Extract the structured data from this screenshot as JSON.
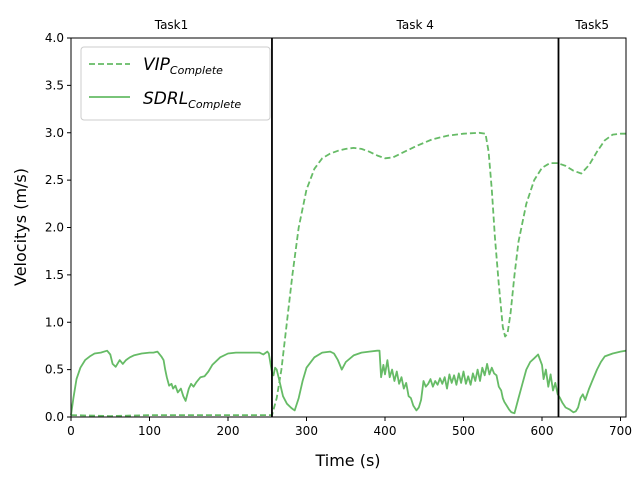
{
  "chart_data": {
    "type": "line",
    "xlabel": "Time (s)",
    "ylabel": "Velocitys (m/s)",
    "xlim": [
      0,
      707
    ],
    "ylim": [
      0,
      4.0
    ],
    "xticks": [
      "0",
      "100",
      "200",
      "300",
      "400",
      "500",
      "600",
      "700"
    ],
    "yticks": [
      "0.0",
      "0.5",
      "1.0",
      "1.5",
      "2.0",
      "2.5",
      "3.0",
      "3.5",
      "4.0"
    ],
    "grid": false,
    "legend_position": "top-left",
    "task_dividers": [
      {
        "x": 256,
        "label": "Task1"
      },
      {
        "x": 621,
        "label": "Task 4"
      },
      {
        "x": 707,
        "label": "Task5"
      }
    ],
    "series": [
      {
        "name_main": "VIP",
        "name_sub": "Complete",
        "color": "#66bb66",
        "dash": true,
        "x": [
          0,
          50,
          100,
          150,
          200,
          256,
          262,
          268,
          275,
          282,
          290,
          300,
          310,
          320,
          330,
          340,
          350,
          360,
          370,
          380,
          390,
          400,
          410,
          420,
          440,
          460,
          480,
          500,
          520,
          528,
          532,
          536,
          540,
          545,
          550,
          553,
          556,
          560,
          565,
          570,
          580,
          590,
          600,
          610,
          620,
          630,
          640,
          650,
          660,
          670,
          680,
          690,
          700,
          707
        ],
        "y": [
          0.02,
          0.01,
          0.02,
          0.02,
          0.02,
          0.02,
          0.2,
          0.5,
          1.0,
          1.5,
          2.0,
          2.4,
          2.62,
          2.73,
          2.78,
          2.81,
          2.83,
          2.84,
          2.83,
          2.8,
          2.76,
          2.73,
          2.74,
          2.78,
          2.86,
          2.93,
          2.97,
          2.99,
          3.0,
          2.99,
          2.8,
          2.4,
          1.9,
          1.4,
          0.95,
          0.85,
          0.88,
          1.1,
          1.5,
          1.85,
          2.25,
          2.5,
          2.63,
          2.68,
          2.68,
          2.65,
          2.6,
          2.57,
          2.66,
          2.8,
          2.92,
          2.98,
          2.99,
          2.99
        ]
      },
      {
        "name_main": "SDRL",
        "name_sub": "Complete",
        "color": "#66bb66",
        "dash": false,
        "x": [
          0,
          3,
          7,
          12,
          18,
          24,
          30,
          38,
          46,
          50,
          53,
          57,
          62,
          66,
          70,
          75,
          80,
          90,
          100,
          105,
          110,
          115,
          118,
          120,
          122,
          125,
          128,
          130,
          133,
          136,
          140,
          143,
          146,
          150,
          153,
          156,
          160,
          165,
          170,
          175,
          180,
          190,
          200,
          210,
          220,
          230,
          240,
          245,
          250,
          252,
          256,
          258,
          260,
          262,
          265,
          270,
          275,
          280,
          283,
          285,
          290,
          295,
          300,
          310,
          320,
          330,
          335,
          340,
          345,
          350,
          360,
          370,
          380,
          390,
          393,
          395,
          398,
          400,
          403,
          406,
          409,
          412,
          415,
          418,
          421,
          424,
          427,
          430,
          433,
          436,
          440,
          443,
          446,
          449,
          452,
          455,
          458,
          461,
          464,
          467,
          470,
          473,
          476,
          479,
          482,
          485,
          488,
          491,
          494,
          497,
          500,
          503,
          506,
          509,
          512,
          515,
          518,
          521,
          524,
          527,
          530,
          533,
          536,
          539,
          542,
          545,
          548,
          550,
          552,
          555,
          558,
          561,
          565,
          570,
          575,
          580,
          585,
          590,
          595,
          600,
          602,
          605,
          608,
          611,
          614,
          617,
          620,
          623,
          626,
          630,
          635,
          640,
          643,
          646,
          649,
          652,
          655,
          660,
          665,
          670,
          675,
          680,
          690,
          700,
          707
        ],
        "y": [
          0.02,
          0.2,
          0.4,
          0.52,
          0.6,
          0.64,
          0.67,
          0.68,
          0.7,
          0.66,
          0.56,
          0.53,
          0.6,
          0.56,
          0.6,
          0.63,
          0.65,
          0.67,
          0.68,
          0.68,
          0.69,
          0.64,
          0.6,
          0.5,
          0.42,
          0.33,
          0.35,
          0.3,
          0.33,
          0.26,
          0.3,
          0.22,
          0.17,
          0.3,
          0.35,
          0.32,
          0.37,
          0.42,
          0.43,
          0.48,
          0.55,
          0.63,
          0.67,
          0.68,
          0.68,
          0.68,
          0.68,
          0.66,
          0.69,
          0.67,
          0.47,
          0.44,
          0.52,
          0.5,
          0.4,
          0.22,
          0.14,
          0.1,
          0.08,
          0.07,
          0.2,
          0.38,
          0.52,
          0.63,
          0.68,
          0.69,
          0.67,
          0.6,
          0.5,
          0.58,
          0.65,
          0.68,
          0.69,
          0.7,
          0.7,
          0.42,
          0.55,
          0.45,
          0.6,
          0.42,
          0.5,
          0.38,
          0.48,
          0.35,
          0.42,
          0.3,
          0.36,
          0.22,
          0.2,
          0.12,
          0.07,
          0.1,
          0.18,
          0.38,
          0.32,
          0.35,
          0.4,
          0.32,
          0.38,
          0.34,
          0.41,
          0.35,
          0.42,
          0.3,
          0.45,
          0.36,
          0.44,
          0.34,
          0.46,
          0.36,
          0.48,
          0.35,
          0.43,
          0.34,
          0.46,
          0.38,
          0.5,
          0.38,
          0.52,
          0.44,
          0.56,
          0.45,
          0.52,
          0.46,
          0.44,
          0.32,
          0.28,
          0.2,
          0.16,
          0.12,
          0.08,
          0.05,
          0.04,
          0.2,
          0.35,
          0.5,
          0.58,
          0.62,
          0.66,
          0.55,
          0.4,
          0.5,
          0.32,
          0.45,
          0.28,
          0.36,
          0.24,
          0.2,
          0.15,
          0.1,
          0.08,
          0.05,
          0.06,
          0.1,
          0.2,
          0.24,
          0.18,
          0.3,
          0.4,
          0.5,
          0.58,
          0.64,
          0.67,
          0.69,
          0.7
        ]
      }
    ]
  }
}
